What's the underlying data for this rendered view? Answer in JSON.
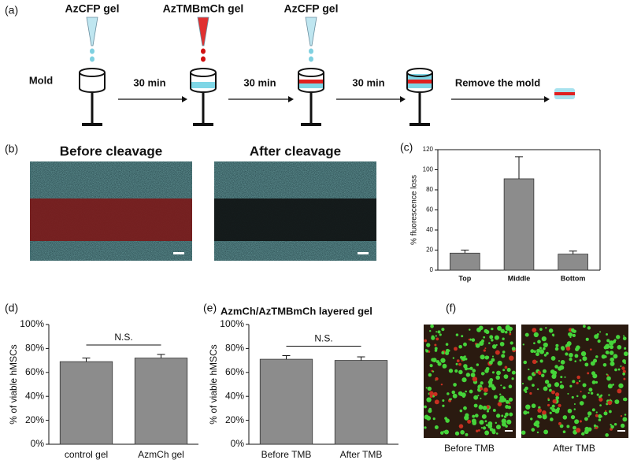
{
  "figure": {
    "panel_labels": [
      "(a)",
      "(b)",
      "(c)",
      "(d)",
      "(e)",
      "(f)"
    ],
    "schematic": {
      "steps": [
        "AzCFP gel",
        "AzTMBmCh gel",
        "AzCFP gel"
      ],
      "mold_label": "Mold",
      "arrows": [
        "30 min",
        "30 min",
        "30 min",
        "Remove the mold"
      ]
    },
    "images_b": [
      "Before cleavage",
      "After cleavage"
    ],
    "images_f": [
      "Before TMB",
      "After TMB"
    ]
  },
  "chart_data": [
    {
      "type": "bar",
      "ylabel": "% fluorescence loss",
      "categories": [
        "Top",
        "Middle",
        "Bottom"
      ],
      "values": [
        17,
        91,
        16
      ],
      "errors": [
        3,
        22,
        3
      ],
      "color": "#8c8c8c",
      "ylim": [
        0,
        120
      ],
      "yticks": [
        0,
        20,
        40,
        60,
        80,
        100,
        120
      ]
    },
    {
      "type": "bar",
      "ylabel": "% of viable hMSCs",
      "categories": [
        "control gel",
        "AzmCh gel"
      ],
      "values": [
        69,
        72
      ],
      "errors": [
        3,
        3
      ],
      "color": "#8c8c8c",
      "annotation": "N.S.",
      "ylim": [
        0,
        100
      ],
      "yticks": [
        {
          "value": 0,
          "label": "0%"
        },
        {
          "value": 20,
          "label": "20%"
        },
        {
          "value": 40,
          "label": "40%"
        },
        {
          "value": 60,
          "label": "60%"
        },
        {
          "value": 80,
          "label": "80%"
        },
        {
          "value": 100,
          "label": "100%"
        }
      ]
    },
    {
      "type": "bar",
      "title": "AzmCh/AzTMBmCh layered gel",
      "ylabel": "% of viable hMSCs",
      "categories": [
        "Before TMB",
        "After TMB"
      ],
      "values": [
        71,
        70
      ],
      "errors": [
        3,
        3
      ],
      "color": "#8c8c8c",
      "annotation": "N.S.",
      "ylim": [
        0,
        100
      ],
      "yticks": [
        {
          "value": 0,
          "label": "0%"
        },
        {
          "value": 20,
          "label": "20%"
        },
        {
          "value": 40,
          "label": "40%"
        },
        {
          "value": 60,
          "label": "60%"
        },
        {
          "value": 80,
          "label": "80%"
        },
        {
          "value": 100,
          "label": "100%"
        }
      ]
    }
  ]
}
